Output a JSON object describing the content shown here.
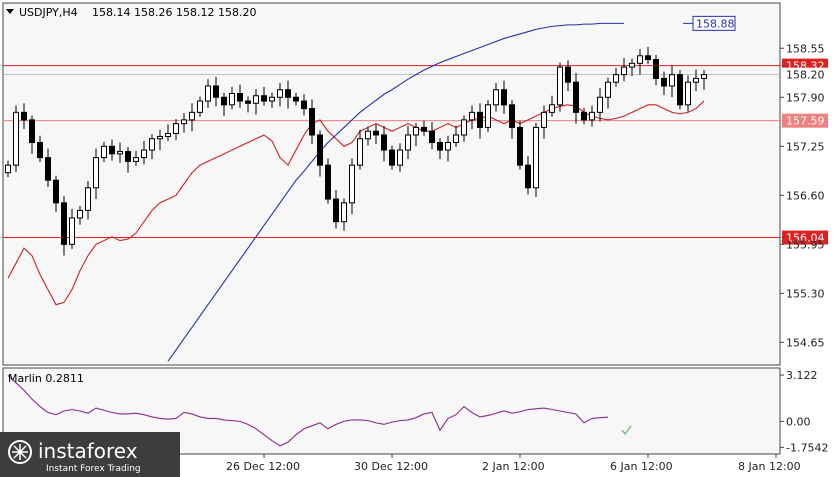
{
  "header": {
    "symbol": "USDJPY,H4",
    "ohlc": "158.14 158.26 158.12 158.20"
  },
  "indicator": {
    "label": "Marlin 0.2811"
  },
  "logo": {
    "name": "instaforex",
    "tagline": "Instant Forex Trading"
  },
  "colors": {
    "background": "#ffffff",
    "chart_bg": "#f7f7f7",
    "candle": "#000000",
    "ma_red": "#cc2222",
    "ma_blue": "#2233aa",
    "level_line": "#dd2222",
    "level_line_light": "#f08080",
    "oscillator": "#8b2b8b",
    "logo_bg": "#3d3d3d"
  },
  "chart_data": {
    "type": "candlestick",
    "symbol": "USDJPY",
    "timeframe": "H4",
    "ylim": [
      154.35,
      159.15
    ],
    "y_ticks": [
      "158.55",
      "157.90",
      "157.25",
      "156.60",
      "155.95",
      "155.30",
      "154.65"
    ],
    "x_ticks": [
      "26 Dec 12:00",
      "30 Dec 12:00",
      "2 Jan 12:00",
      "6 Jan 12:00",
      "8 Jan 12:00"
    ],
    "x_tick_index": [
      32,
      48,
      64,
      80,
      96
    ],
    "current_price": 158.2,
    "levels": [
      {
        "value": 158.32,
        "label": "158.32",
        "style": "strong"
      },
      {
        "value": 157.59,
        "label": "157.59",
        "style": "light"
      },
      {
        "value": 156.04,
        "label": "156.04",
        "style": "strong"
      }
    ],
    "blue_ma_label": {
      "value": 158.88,
      "label": "158.88"
    },
    "closes": [
      157.0,
      157.7,
      157.6,
      157.3,
      157.1,
      156.8,
      156.5,
      155.95,
      156.3,
      156.4,
      156.7,
      157.1,
      157.25,
      157.15,
      157.18,
      157.05,
      157.1,
      157.2,
      157.35,
      157.38,
      157.42,
      157.55,
      157.6,
      157.7,
      157.85,
      158.05,
      157.9,
      157.8,
      157.95,
      157.85,
      157.82,
      157.92,
      157.85,
      157.9,
      158.0,
      157.9,
      157.85,
      157.75,
      157.4,
      157.0,
      156.55,
      156.25,
      156.5,
      157.0,
      157.35,
      157.45,
      157.4,
      157.2,
      157.0,
      157.2,
      157.4,
      157.5,
      157.45,
      157.3,
      157.2,
      157.3,
      157.4,
      157.6,
      157.7,
      157.5,
      157.8,
      158.0,
      157.8,
      157.5,
      157.0,
      156.7,
      157.5,
      157.7,
      157.8,
      158.3,
      158.1,
      157.7,
      157.6,
      157.7,
      157.9,
      158.1,
      158.2,
      158.3,
      158.35,
      158.45,
      158.4,
      158.15,
      158.05,
      158.2,
      157.8,
      158.1,
      158.15,
      158.2
    ],
    "ma_red": [
      155.5,
      155.7,
      155.9,
      155.8,
      155.55,
      155.35,
      155.15,
      155.18,
      155.35,
      155.6,
      155.8,
      155.95,
      156.0,
      156.05,
      156.0,
      156.02,
      156.1,
      156.25,
      156.4,
      156.5,
      156.55,
      156.6,
      156.75,
      156.9,
      157.0,
      157.05,
      157.1,
      157.15,
      157.2,
      157.25,
      157.3,
      157.35,
      157.4,
      157.32,
      157.1,
      157.0,
      157.2,
      157.4,
      157.55,
      157.6,
      157.45,
      157.35,
      157.25,
      157.3,
      157.45,
      157.5,
      157.55,
      157.5,
      157.45,
      157.5,
      157.55,
      157.5,
      157.45,
      157.45,
      157.5,
      157.55,
      157.5,
      157.55,
      157.6,
      157.62,
      157.65,
      157.6,
      157.55,
      157.6,
      157.55,
      157.6,
      157.65,
      157.7,
      157.75,
      157.78,
      157.8,
      157.78,
      157.7,
      157.65,
      157.62,
      157.6,
      157.62,
      157.65,
      157.7,
      157.75,
      157.8,
      157.8,
      157.75,
      157.7,
      157.68,
      157.7,
      157.75,
      157.85
    ],
    "ma_blue": [
      null,
      null,
      null,
      null,
      null,
      null,
      null,
      null,
      null,
      null,
      null,
      null,
      null,
      null,
      null,
      null,
      null,
      null,
      null,
      null,
      154.4,
      154.55,
      154.7,
      154.85,
      155.0,
      155.15,
      155.3,
      155.45,
      155.6,
      155.75,
      155.9,
      156.05,
      156.2,
      156.35,
      156.5,
      156.65,
      156.8,
      156.92,
      157.05,
      157.18,
      157.3,
      157.4,
      157.5,
      157.6,
      157.7,
      157.78,
      157.86,
      157.94,
      158.0,
      158.07,
      158.14,
      158.2,
      158.26,
      158.31,
      158.36,
      158.4,
      158.44,
      158.48,
      158.52,
      158.56,
      158.6,
      158.64,
      158.68,
      158.71,
      158.74,
      158.77,
      158.8,
      158.82,
      158.84,
      158.85,
      158.86,
      158.86,
      158.87,
      158.87,
      158.88,
      158.88,
      158.88,
      158.88
    ],
    "oscillator": {
      "name": "Marlin",
      "ylim": [
        -2.2,
        3.6
      ],
      "y_ticks": [
        "3.122",
        "0.00",
        "-1.7542"
      ],
      "values": [
        3.1,
        2.6,
        2.1,
        1.5,
        1.0,
        0.6,
        0.45,
        0.7,
        0.8,
        0.7,
        0.55,
        0.9,
        0.75,
        0.6,
        0.5,
        0.5,
        0.55,
        0.45,
        0.3,
        0.2,
        0.15,
        0.2,
        0.6,
        0.5,
        0.3,
        0.2,
        0.2,
        0.1,
        0.05,
        0.0,
        -0.2,
        -0.5,
        -0.9,
        -1.3,
        -1.65,
        -1.4,
        -0.9,
        -0.5,
        -0.3,
        -0.1,
        -0.5,
        -0.2,
        0.0,
        0.1,
        0.1,
        0.05,
        -0.1,
        -0.2,
        -0.05,
        0.05,
        0.1,
        0.25,
        0.5,
        0.6,
        -0.6,
        0.2,
        0.45,
        1.0,
        0.6,
        0.3,
        0.4,
        0.55,
        0.7,
        0.55,
        0.65,
        0.8,
        0.85,
        0.9,
        0.8,
        0.7,
        0.6,
        0.5,
        -0.1,
        0.2,
        0.25,
        0.28
      ]
    }
  }
}
